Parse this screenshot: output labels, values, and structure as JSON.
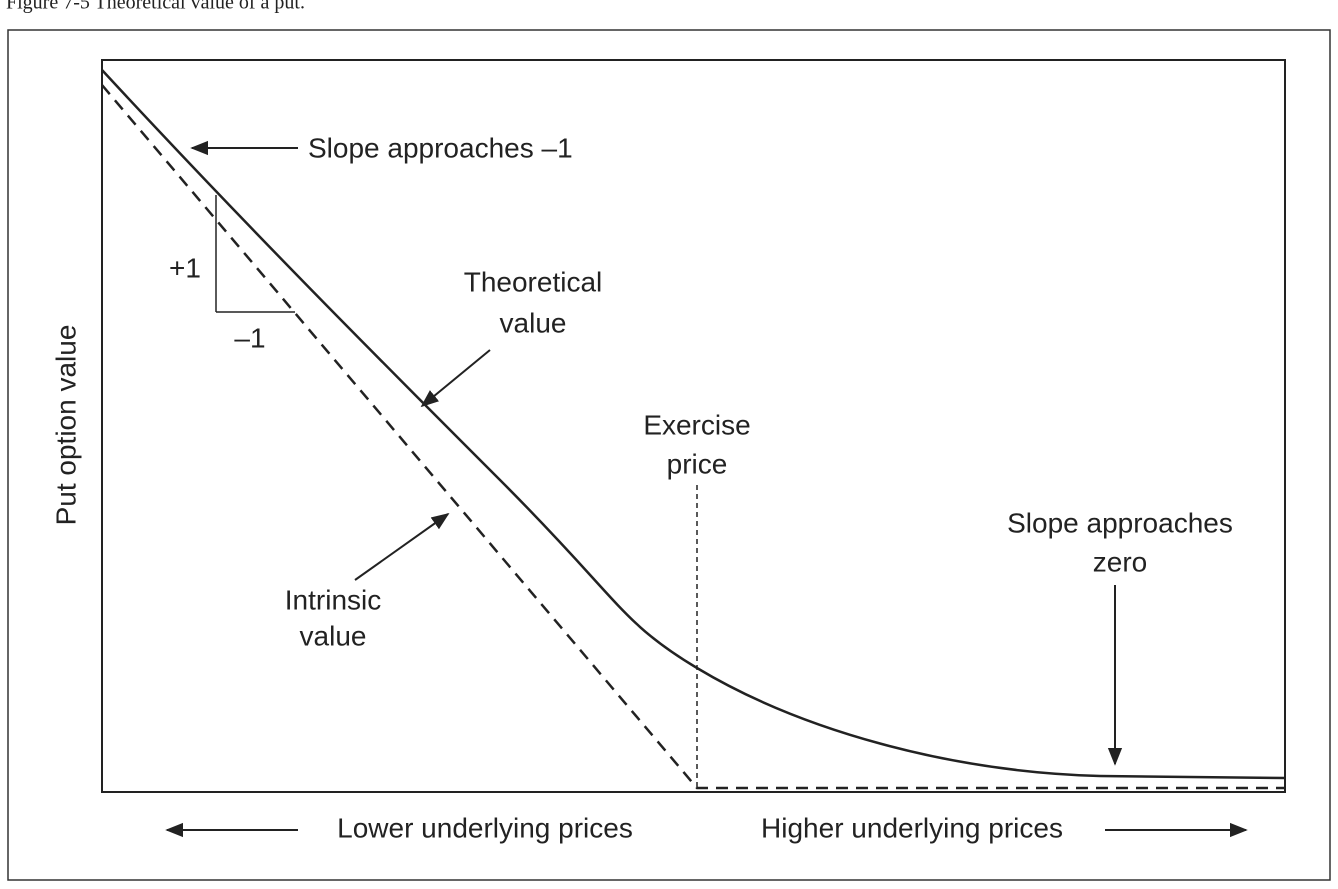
{
  "caption": "Figure 7-5 Theoretical value of a put.",
  "y_axis_label": "Put option value",
  "x_axis": {
    "left": "Lower underlying prices",
    "right": "Higher underlying prices"
  },
  "annotations": {
    "slope_left": "Slope approaches –1",
    "rise": "+1",
    "run": "–1",
    "theoretical": [
      "Theoretical",
      "value"
    ],
    "exercise": [
      "Exercise",
      "price"
    ],
    "intrinsic": [
      "Intrinsic",
      "value"
    ],
    "slope_right": [
      "Slope approaches",
      "zero"
    ]
  }
}
